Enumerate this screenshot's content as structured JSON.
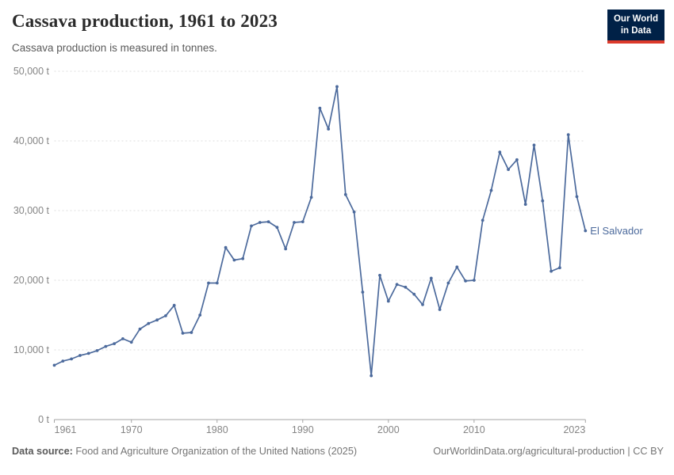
{
  "header": {
    "title": "Cassava production, 1961 to 2023",
    "subtitle": "Cassava production is measured in tonnes."
  },
  "logo": {
    "line1": "Our World",
    "line2": "in Data",
    "bg_color": "#002147",
    "accent_color": "#dc3a2b"
  },
  "chart_data": {
    "type": "line",
    "title": "Cassava production, 1961 to 2023",
    "ylabel": "",
    "xlabel": "",
    "unit": "t",
    "xlim": [
      1961,
      2023
    ],
    "ylim": [
      0,
      50000
    ],
    "xticks": [
      1961,
      1970,
      1980,
      1990,
      2000,
      2010,
      2023
    ],
    "yticks": [
      0,
      10000,
      20000,
      30000,
      40000,
      50000
    ],
    "grid": "horizontal-dashed",
    "legend_position": "end-of-line-label",
    "series": [
      {
        "name": "El Salvador",
        "color": "#4C6A9C",
        "x": [
          1961,
          1962,
          1963,
          1964,
          1965,
          1966,
          1967,
          1968,
          1969,
          1970,
          1971,
          1972,
          1973,
          1974,
          1975,
          1976,
          1977,
          1978,
          1979,
          1980,
          1981,
          1982,
          1983,
          1984,
          1985,
          1986,
          1987,
          1988,
          1989,
          1990,
          1991,
          1992,
          1993,
          1994,
          1995,
          1996,
          1997,
          1998,
          1999,
          2000,
          2001,
          2002,
          2003,
          2004,
          2005,
          2006,
          2007,
          2008,
          2009,
          2010,
          2011,
          2012,
          2013,
          2014,
          2015,
          2016,
          2017,
          2018,
          2019,
          2020,
          2021,
          2022,
          2023
        ],
        "values": [
          7800,
          8400,
          8700,
          9200,
          9500,
          9900,
          10500,
          10900,
          11600,
          11100,
          13000,
          13800,
          14300,
          14900,
          16400,
          12400,
          12500,
          15000,
          19600,
          19600,
          24700,
          22900,
          23100,
          27800,
          28300,
          28400,
          27600,
          24500,
          28300,
          28400,
          31900,
          44700,
          41700,
          47800,
          32300,
          29800,
          18300,
          6300,
          20700,
          17000,
          19400,
          19000,
          18000,
          16500,
          20300,
          15800,
          19600,
          21900,
          19900,
          20000,
          28600,
          32900,
          38400,
          35900,
          37300,
          30900,
          39400,
          31400,
          21300,
          21800,
          40900,
          32000,
          27100
        ]
      }
    ]
  },
  "footer": {
    "source_label": "Data source:",
    "source_text": " Food and Agriculture Organization of the United Nations (2025)",
    "link_text": "OurWorldinData.org/agricultural-production | CC BY"
  }
}
